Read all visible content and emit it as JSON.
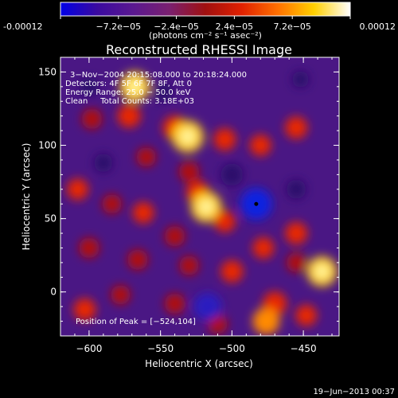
{
  "colorbar": {
    "tick_labels": [
      "-0.00012",
      "−7.2e−05",
      "−2.4e−05",
      "2.4e−05",
      "7.2e−05",
      "0.00012"
    ],
    "unit_label": "(photons cm⁻² s⁻¹ asec⁻²)",
    "range": [
      -0.00012,
      0.00012
    ],
    "colors": [
      "#0000e6",
      "#3a0aa0",
      "#5a1890",
      "#7a2070",
      "#a01010",
      "#e02000",
      "#ff7000",
      "#ffd000",
      "#ffffff"
    ]
  },
  "chart_data": {
    "type": "heatmap",
    "title": "Reconstructed RHESSI Image",
    "xlabel": "Heliocentric X (arcsec)",
    "ylabel": "Heliocentric Y (arcsec)",
    "xlim": [
      -620,
      -425
    ],
    "ylim": [
      -30,
      160
    ],
    "x_ticks": [
      -600,
      -550,
      -500,
      -450
    ],
    "y_ticks": [
      0,
      50,
      100,
      150
    ],
    "x_tick_labels": [
      "−600",
      "−550",
      "−500",
      "−450"
    ],
    "y_tick_labels": [
      "0",
      "50",
      "100",
      "150"
    ],
    "info_lines": [
      "3−Nov−2004 20:15:08.000 to 20:18:24.000",
      "Detectors: 4F 5F 6F 7F 8F, Att 0",
      "Energy Range: 25.0 − 50.0 keV",
      "Clean     Total Counts: 3.18E+03"
    ],
    "peak_text": "Position of Peak = [−524,104]",
    "peak": [
      -524,
      104
    ],
    "marker": [
      -483,
      60
    ],
    "blobs": [
      {
        "x": -568,
        "y": 140,
        "v": 0.9
      },
      {
        "x": -572,
        "y": 120,
        "v": 0.55
      },
      {
        "x": -540,
        "y": 112,
        "v": 0.6
      },
      {
        "x": -531,
        "y": 106,
        "v": 1.0
      },
      {
        "x": -560,
        "y": 92,
        "v": 0.35
      },
      {
        "x": -505,
        "y": 104,
        "v": 0.5
      },
      {
        "x": -480,
        "y": 100,
        "v": 0.45
      },
      {
        "x": -455,
        "y": 112,
        "v": 0.5
      },
      {
        "x": -598,
        "y": 118,
        "v": 0.4
      },
      {
        "x": -608,
        "y": 70,
        "v": 0.45
      },
      {
        "x": -584,
        "y": 60,
        "v": 0.35
      },
      {
        "x": -524,
        "y": 68,
        "v": 0.55
      },
      {
        "x": -518,
        "y": 58,
        "v": 0.95
      },
      {
        "x": -505,
        "y": 48,
        "v": 0.45
      },
      {
        "x": -530,
        "y": 82,
        "v": 0.4
      },
      {
        "x": -562,
        "y": 54,
        "v": 0.45
      },
      {
        "x": -540,
        "y": 38,
        "v": 0.4
      },
      {
        "x": -478,
        "y": 30,
        "v": 0.45
      },
      {
        "x": -455,
        "y": 40,
        "v": 0.5
      },
      {
        "x": -437,
        "y": 14,
        "v": 0.9
      },
      {
        "x": -455,
        "y": 20,
        "v": 0.35
      },
      {
        "x": -500,
        "y": 14,
        "v": 0.5
      },
      {
        "x": -530,
        "y": 18,
        "v": 0.35
      },
      {
        "x": -566,
        "y": 22,
        "v": 0.4
      },
      {
        "x": -600,
        "y": 30,
        "v": 0.4
      },
      {
        "x": -603,
        "y": -12,
        "v": 0.5
      },
      {
        "x": -578,
        "y": -2,
        "v": 0.35
      },
      {
        "x": -540,
        "y": -8,
        "v": 0.4
      },
      {
        "x": -470,
        "y": -8,
        "v": 0.6
      },
      {
        "x": -476,
        "y": -20,
        "v": 0.75
      },
      {
        "x": -448,
        "y": -16,
        "v": 0.45
      },
      {
        "x": -510,
        "y": -22,
        "v": 0.35
      },
      {
        "x": -483,
        "y": 60,
        "v": -1.0
      },
      {
        "x": -500,
        "y": 80,
        "v": -0.5
      },
      {
        "x": -517,
        "y": -10,
        "v": -0.8
      },
      {
        "x": -590,
        "y": 88,
        "v": -0.3
      },
      {
        "x": -600,
        "y": 140,
        "v": -0.3
      },
      {
        "x": -455,
        "y": 70,
        "v": -0.35
      },
      {
        "x": -548,
        "y": 136,
        "v": -0.3
      },
      {
        "x": -452,
        "y": 145,
        "v": -0.2
      }
    ]
  },
  "footer": {
    "timestamp": "19−Jun−2013 00:37"
  }
}
